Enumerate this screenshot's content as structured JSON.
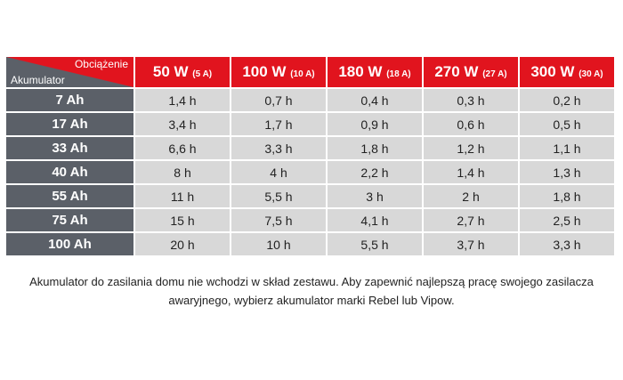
{
  "table": {
    "corner": {
      "top": "Obciążenie",
      "bottom": "Akumulator"
    },
    "columns": [
      {
        "power": "50 W",
        "current": "(5 A)"
      },
      {
        "power": "100 W",
        "current": "(10 A)"
      },
      {
        "power": "180 W",
        "current": "(18 A)"
      },
      {
        "power": "270 W",
        "current": "(27 A)"
      },
      {
        "power": "300 W",
        "current": "(30 A)"
      }
    ],
    "rows": [
      {
        "label": "7 Ah",
        "cells": [
          "1,4 h",
          "0,7 h",
          "0,4 h",
          "0,3 h",
          "0,2 h"
        ]
      },
      {
        "label": "17 Ah",
        "cells": [
          "3,4 h",
          "1,7 h",
          "0,9 h",
          "0,6 h",
          "0,5 h"
        ]
      },
      {
        "label": "33 Ah",
        "cells": [
          "6,6 h",
          "3,3 h",
          "1,8 h",
          "1,2 h",
          "1,1 h"
        ]
      },
      {
        "label": "40 Ah",
        "cells": [
          "8 h",
          "4 h",
          "2,2 h",
          "1,4 h",
          "1,3 h"
        ]
      },
      {
        "label": "55 Ah",
        "cells": [
          "11 h",
          "5,5 h",
          "3 h",
          "2 h",
          "1,8 h"
        ]
      },
      {
        "label": "75 Ah",
        "cells": [
          "15 h",
          "7,5 h",
          "4,1 h",
          "2,7 h",
          "2,5 h"
        ]
      },
      {
        "label": "100 Ah",
        "cells": [
          "20 h",
          "10 h",
          "5,5 h",
          "3,7 h",
          "3,3 h"
        ]
      }
    ]
  },
  "note": {
    "lines": [
      "Akumulator do zasilania domu nie wchodzi w skład zestawu. Aby zapewnić najlepszą pracę swojego zasilacza",
      "awaryjnego, wybierz akumulator marki Rebel lub Vipow."
    ]
  }
}
